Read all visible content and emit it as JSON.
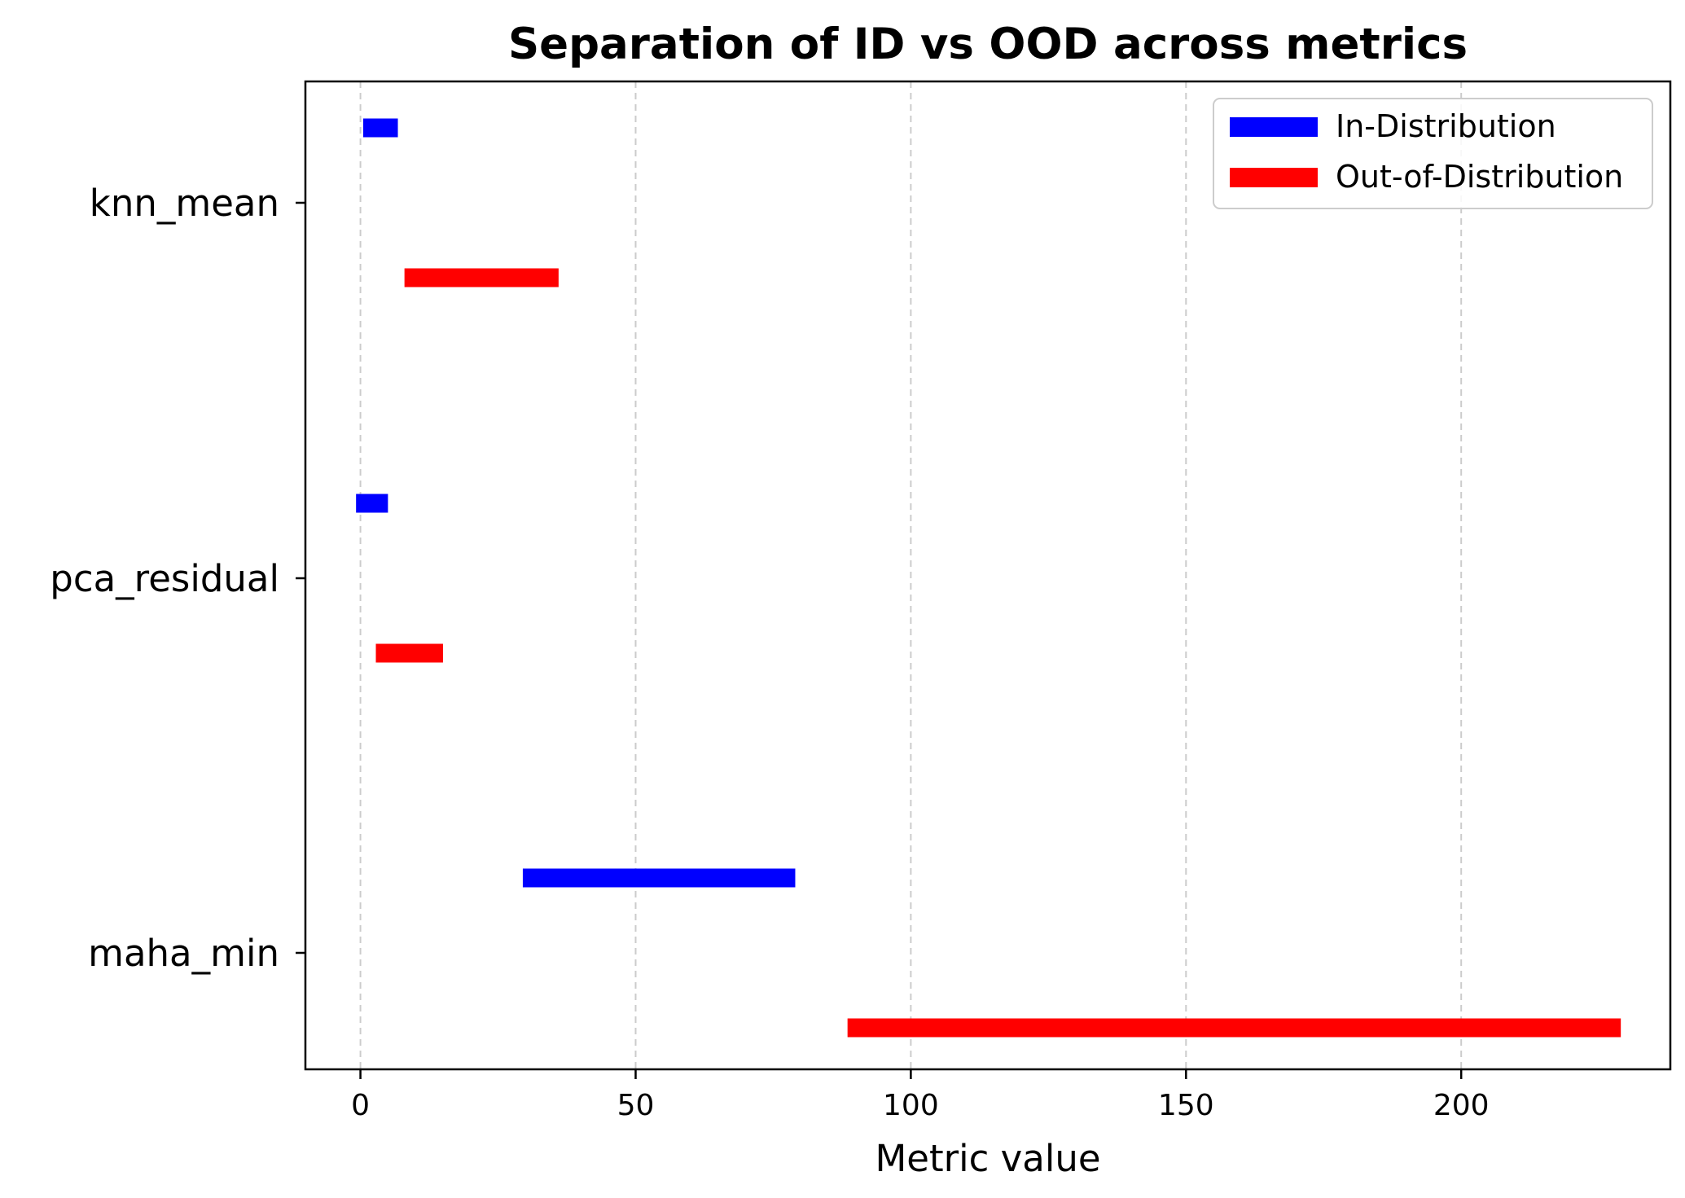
{
  "chart_data": {
    "type": "bar",
    "orientation": "horizontal-range",
    "title": "Separation of ID vs OOD across metrics",
    "xlabel": "Metric value",
    "ylabel": "",
    "categories": [
      "knn_mean",
      "pca_residual",
      "maha_min"
    ],
    "xlim": [
      -10,
      238
    ],
    "xticks": [
      0,
      50,
      100,
      150,
      200
    ],
    "grid": "x-dashed",
    "legend": "top-right",
    "series": [
      {
        "name": "In-Distribution",
        "color": "#0000ff",
        "ranges": [
          [
            0.5,
            6.8
          ],
          [
            -0.8,
            5.0
          ],
          [
            29.5,
            79.0
          ]
        ]
      },
      {
        "name": "Out-of-Distribution",
        "color": "#ff0000",
        "ranges": [
          [
            8.0,
            36.0
          ],
          [
            2.8,
            15.0
          ],
          [
            88.5,
            229.0
          ]
        ]
      }
    ]
  }
}
